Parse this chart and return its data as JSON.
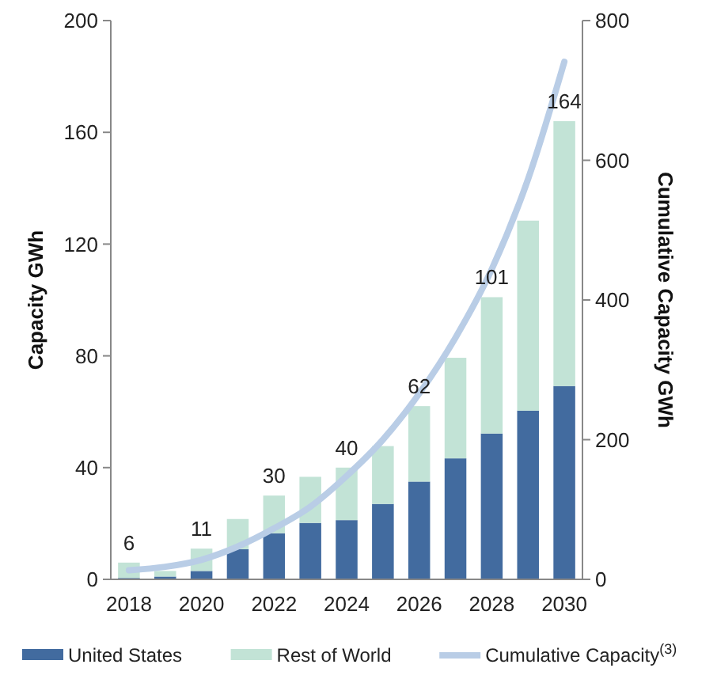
{
  "chart_data": {
    "type": "bar",
    "stacked": true,
    "ylabel": "Capacity GWh",
    "y2label": "Cumulative Capacity GWh",
    "categories": [
      "2018",
      null,
      "2020",
      null,
      "2022",
      null,
      "2024",
      null,
      "2026",
      null,
      "2028",
      null,
      "2030"
    ],
    "series": [
      {
        "name": "United States",
        "color": "#426b9f",
        "values": [
          0.5,
          1,
          3,
          10.8,
          16.5,
          20.2,
          21.2,
          27,
          35,
          43.3,
          52.2,
          60.4,
          69.2
        ]
      },
      {
        "name": "Rest of World",
        "color": "#c2e3d6",
        "values": [
          5.5,
          2,
          8,
          10.8,
          13.5,
          16.5,
          18.8,
          20.7,
          27,
          36,
          48.8,
          68,
          94.8
        ]
      },
      {
        "name": "Cumulative Capacity$^{(3)}$",
        "type": "line",
        "axis": "y2",
        "color": "#b9cde6",
        "values": [
          13,
          18,
          28,
          47,
          73,
          104,
          148,
          200,
          266,
          346,
          444,
          573,
          741
        ]
      }
    ],
    "totals": [
      "6",
      null,
      "11",
      null,
      "30",
      null,
      "40",
      null,
      "62",
      null,
      "101",
      null,
      "164"
    ],
    "ylim": [
      0,
      200
    ],
    "yticks": [
      0,
      40,
      80,
      120,
      160,
      200
    ],
    "y2lim": [
      0,
      800
    ],
    "y2ticks": [
      0,
      200,
      400,
      600,
      800
    ],
    "legend": "bottom",
    "grid": false,
    "line_style": "solid",
    "marker": "none"
  }
}
